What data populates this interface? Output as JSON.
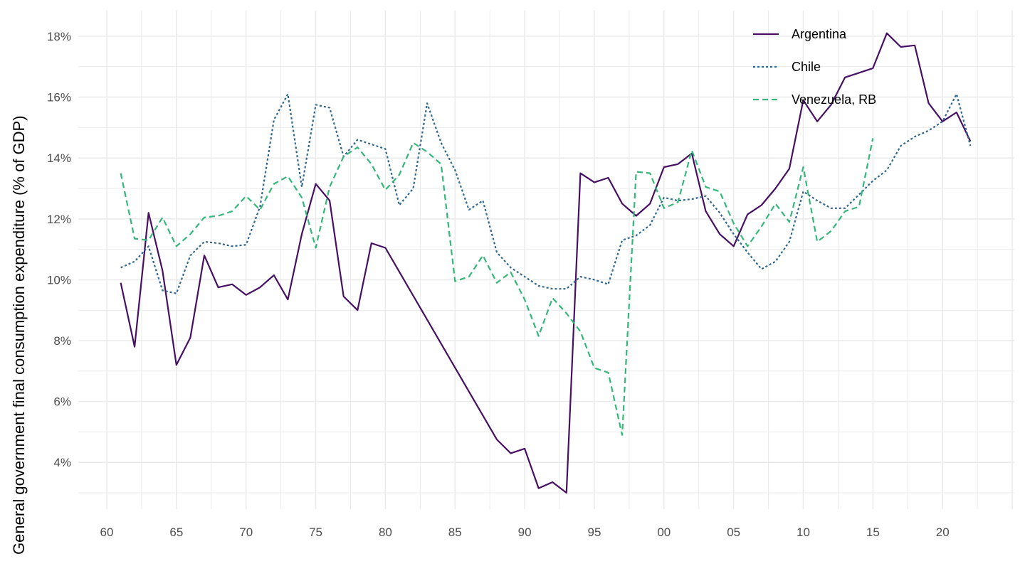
{
  "chart_data": {
    "type": "line",
    "title": "",
    "xlabel": "",
    "ylabel": "General government final consumption expenditure (% of GDP)",
    "xlim": [
      1958,
      2025.2
    ],
    "ylim": [
      2.3,
      18.85
    ],
    "grid": true,
    "legend_position": "top-right",
    "x_ticks": [
      {
        "v": 1960,
        "label": "60"
      },
      {
        "v": 1965,
        "label": "65"
      },
      {
        "v": 1970,
        "label": "70"
      },
      {
        "v": 1975,
        "label": "75"
      },
      {
        "v": 1980,
        "label": "80"
      },
      {
        "v": 1985,
        "label": "85"
      },
      {
        "v": 1990,
        "label": "90"
      },
      {
        "v": 1995,
        "label": "95"
      },
      {
        "v": 2000,
        "label": "00"
      },
      {
        "v": 2005,
        "label": "05"
      },
      {
        "v": 2010,
        "label": "10"
      },
      {
        "v": 2015,
        "label": "15"
      },
      {
        "v": 2020,
        "label": "20"
      }
    ],
    "y_ticks": [
      {
        "v": 4,
        "label": "4%"
      },
      {
        "v": 6,
        "label": "6%"
      },
      {
        "v": 8,
        "label": "8%"
      },
      {
        "v": 10,
        "label": "10%"
      },
      {
        "v": 12,
        "label": "12%"
      },
      {
        "v": 14,
        "label": "14%"
      },
      {
        "v": 16,
        "label": "16%"
      },
      {
        "v": 18,
        "label": "18%"
      }
    ],
    "series": [
      {
        "name": "Argentina",
        "color": "#471063",
        "dash": "none",
        "x": [
          1961,
          1962,
          1963,
          1964,
          1965,
          1966,
          1967,
          1968,
          1969,
          1970,
          1971,
          1972,
          1973,
          1974,
          1975,
          1976,
          1977,
          1978,
          1979,
          1980,
          1988,
          1989,
          1990,
          1991,
          1992,
          1993,
          1994,
          1995,
          1996,
          1997,
          1998,
          1999,
          2000,
          2001,
          2002,
          2003,
          2004,
          2005,
          2006,
          2007,
          2008,
          2009,
          2010,
          2011,
          2012,
          2013,
          2014,
          2015,
          2016,
          2017,
          2018,
          2019,
          2020,
          2021,
          2022
        ],
        "y": [
          9.9,
          7.8,
          12.2,
          10.3,
          7.2,
          8.1,
          10.8,
          9.75,
          9.85,
          9.5,
          9.75,
          10.15,
          9.35,
          11.5,
          13.15,
          12.6,
          9.45,
          9.0,
          11.2,
          11.05,
          4.75,
          4.3,
          4.45,
          3.15,
          3.35,
          3.0,
          13.5,
          13.2,
          13.35,
          12.5,
          12.1,
          12.5,
          13.7,
          13.8,
          14.15,
          12.25,
          11.5,
          11.1,
          12.15,
          12.45,
          13.0,
          13.65,
          15.9,
          15.2,
          15.75,
          16.65,
          16.8,
          16.95,
          18.1,
          17.65,
          17.7,
          15.8,
          15.2,
          15.5,
          14.55
        ]
      },
      {
        "name": "Chile",
        "color": "#31688E",
        "dash": "3,3",
        "x": [
          1961,
          1962,
          1963,
          1964,
          1965,
          1966,
          1967,
          1968,
          1969,
          1970,
          1971,
          1972,
          1973,
          1974,
          1975,
          1976,
          1977,
          1978,
          1979,
          1980,
          1981,
          1982,
          1983,
          1984,
          1985,
          1986,
          1987,
          1988,
          1989,
          1990,
          1991,
          1992,
          1993,
          1994,
          1995,
          1996,
          1997,
          1998,
          1999,
          2000,
          2001,
          2002,
          2003,
          2004,
          2005,
          2006,
          2007,
          2008,
          2009,
          2010,
          2011,
          2012,
          2013,
          2014,
          2015,
          2016,
          2017,
          2018,
          2019,
          2020,
          2021,
          2022
        ],
        "y": [
          10.4,
          10.6,
          11.1,
          9.65,
          9.55,
          10.8,
          11.25,
          11.2,
          11.1,
          11.15,
          12.4,
          15.25,
          16.1,
          13.05,
          15.75,
          15.65,
          14.05,
          14.6,
          14.45,
          14.3,
          12.45,
          13.0,
          15.8,
          14.5,
          13.6,
          12.3,
          12.6,
          10.9,
          10.4,
          10.1,
          9.8,
          9.7,
          9.7,
          10.1,
          10.0,
          9.85,
          11.3,
          11.45,
          11.8,
          12.7,
          12.6,
          12.65,
          12.75,
          12.2,
          11.5,
          10.9,
          10.35,
          10.6,
          11.25,
          12.9,
          12.6,
          12.35,
          12.35,
          12.8,
          13.25,
          13.6,
          14.4,
          14.7,
          14.9,
          15.2,
          16.1,
          14.4
        ]
      },
      {
        "name": "Venezuela, RB",
        "color": "#35B779",
        "dash": "8,5",
        "x": [
          1961,
          1962,
          1963,
          1964,
          1965,
          1966,
          1967,
          1968,
          1969,
          1970,
          1971,
          1972,
          1973,
          1974,
          1975,
          1976,
          1977,
          1978,
          1979,
          1980,
          1981,
          1982,
          1983,
          1984,
          1985,
          1986,
          1987,
          1988,
          1989,
          1990,
          1991,
          1992,
          1993,
          1994,
          1995,
          1996,
          1997,
          1998,
          1999,
          2000,
          2001,
          2002,
          2003,
          2004,
          2005,
          2006,
          2007,
          2008,
          2009,
          2010,
          2011,
          2012,
          2013,
          2014,
          2015
        ],
        "y": [
          13.5,
          11.35,
          11.3,
          12.05,
          11.1,
          11.5,
          12.05,
          12.1,
          12.25,
          12.75,
          12.3,
          13.15,
          13.4,
          12.7,
          11.05,
          13.05,
          14.05,
          14.35,
          13.8,
          12.95,
          13.45,
          14.5,
          14.2,
          13.8,
          9.95,
          10.1,
          10.8,
          9.9,
          10.25,
          9.35,
          8.15,
          9.4,
          8.9,
          8.3,
          7.1,
          6.95,
          4.9,
          13.55,
          13.5,
          12.35,
          12.55,
          14.25,
          13.05,
          12.9,
          11.85,
          11.1,
          11.75,
          12.5,
          11.9,
          13.7,
          11.25,
          11.6,
          12.25,
          12.4,
          14.65
        ]
      }
    ]
  }
}
